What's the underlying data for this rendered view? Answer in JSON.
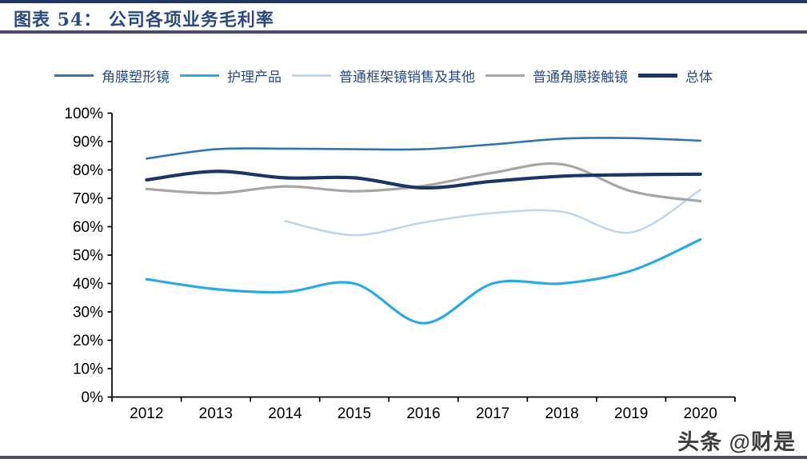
{
  "header": {
    "title": "图表 54： 公司各项业务毛利率"
  },
  "watermark": "头条 @财是",
  "colors": {
    "title_text": "#2b4a80",
    "top_rule": "#203864",
    "title_rule": "#4c4b6e",
    "bottom_rule": "#504e68",
    "axis": "#000000"
  },
  "chart_data": {
    "type": "line",
    "title": "公司各项业务毛利率",
    "categories": [
      "2012",
      "2013",
      "2014",
      "2015",
      "2016",
      "2017",
      "2018",
      "2019",
      "2020"
    ],
    "y_tick_labels": [
      "0%",
      "10%",
      "20%",
      "30%",
      "40%",
      "50%",
      "60%",
      "70%",
      "80%",
      "90%",
      "100%"
    ],
    "ylim": [
      0,
      100
    ],
    "grid": false,
    "legend_position": "top",
    "series": [
      {
        "name": "角膜塑形镜",
        "color": "#2E75B6",
        "thickness": 2.6,
        "values": [
          84,
          87.3,
          87.5,
          87.3,
          87.3,
          89,
          91,
          91.2,
          90.3
        ]
      },
      {
        "name": "护理产品",
        "color": "#29ABE2",
        "thickness": 3.2,
        "values": [
          41.5,
          38,
          37,
          40,
          26,
          40,
          40,
          44.5,
          55.5
        ]
      },
      {
        "name": "普通框架镜销售及其他",
        "color": "#BDD7EE",
        "thickness": 2.6,
        "values": [
          null,
          null,
          62,
          57,
          61.5,
          64.8,
          65.3,
          58,
          73
        ]
      },
      {
        "name": "普通角膜接触镜",
        "color": "#A6A6A6",
        "thickness": 3.2,
        "values": [
          73.3,
          71.8,
          74.2,
          72.5,
          74.4,
          79,
          82,
          72.5,
          69
        ]
      },
      {
        "name": "总体",
        "color": "#1C3564",
        "thickness": 4.2,
        "values": [
          76.5,
          79.5,
          77.2,
          77.2,
          73.7,
          76,
          77.8,
          78.3,
          78.5
        ]
      }
    ]
  }
}
